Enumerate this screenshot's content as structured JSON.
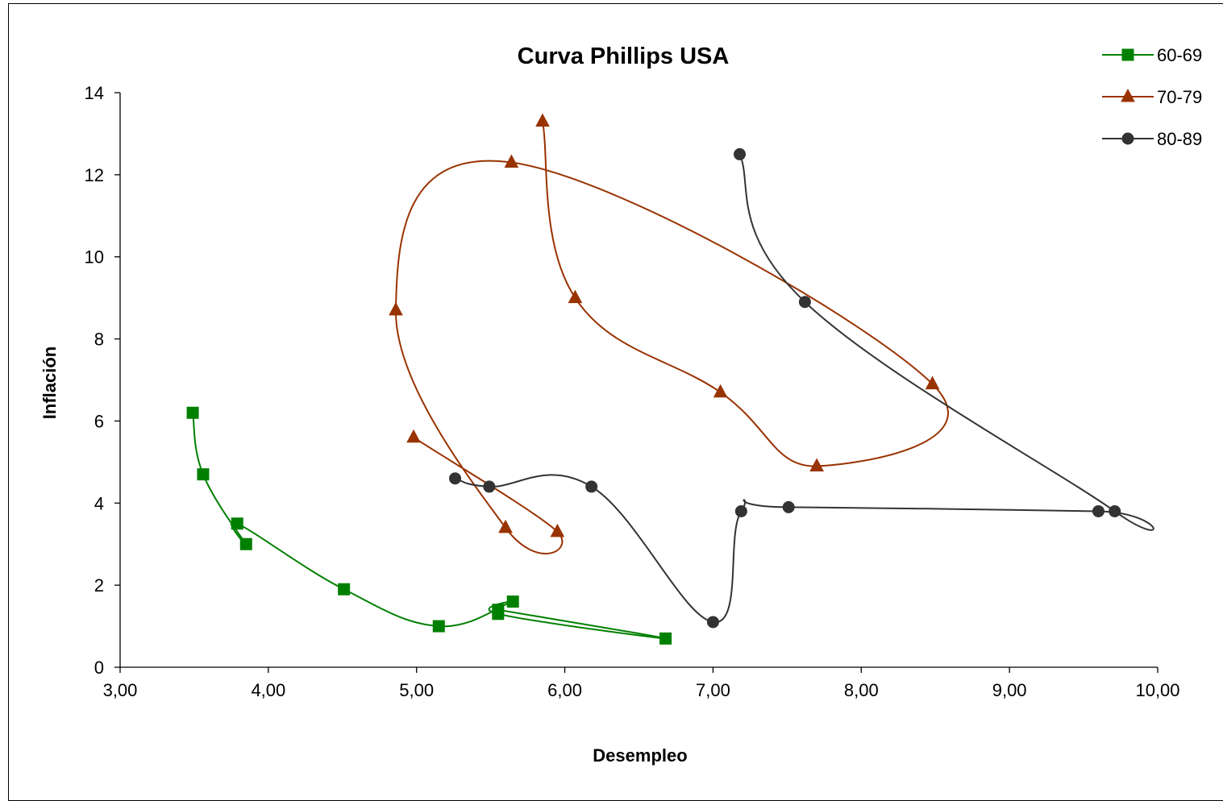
{
  "chart_data": {
    "type": "scatter",
    "title": "Curva Phillips USA",
    "xlabel": "Desempleo",
    "ylabel": "Inflación",
    "xlim": [
      3.0,
      10.0
    ],
    "ylim": [
      0,
      14
    ],
    "x_ticks": [
      "3,00",
      "4,00",
      "5,00",
      "6,00",
      "7,00",
      "8,00",
      "9,00",
      "10,00"
    ],
    "y_ticks": [
      "0",
      "2",
      "4",
      "6",
      "8",
      "10",
      "12",
      "14"
    ],
    "grid": false,
    "legend_position": "top-right",
    "series": [
      {
        "name": "60-69",
        "color": "#008000",
        "marker": "square",
        "points": [
          [
            5.55,
            1.4
          ],
          [
            6.68,
            0.7
          ],
          [
            5.55,
            1.3
          ],
          [
            5.65,
            1.6
          ],
          [
            5.15,
            1.0
          ],
          [
            4.51,
            1.9
          ],
          [
            3.79,
            3.5
          ],
          [
            3.85,
            3.0
          ],
          [
            3.56,
            4.7
          ],
          [
            3.49,
            6.2
          ]
        ]
      },
      {
        "name": "70-79",
        "color": "#993300",
        "marker": "triangle",
        "points": [
          [
            4.98,
            5.6
          ],
          [
            5.95,
            3.3
          ],
          [
            5.6,
            3.4
          ],
          [
            4.86,
            8.7
          ],
          [
            5.64,
            12.3
          ],
          [
            8.48,
            6.9
          ],
          [
            7.7,
            4.9
          ],
          [
            7.05,
            6.7
          ],
          [
            6.07,
            9.0
          ],
          [
            5.85,
            13.3
          ]
        ]
      },
      {
        "name": "80-89",
        "color": "#333333",
        "marker": "circle",
        "points": [
          [
            7.18,
            12.5
          ],
          [
            7.62,
            8.9
          ],
          [
            9.71,
            3.8
          ],
          [
            9.6,
            3.8
          ],
          [
            7.51,
            3.9
          ],
          [
            7.19,
            3.8
          ],
          [
            7.0,
            1.1
          ],
          [
            6.18,
            4.4
          ],
          [
            5.49,
            4.4
          ],
          [
            5.26,
            4.6
          ]
        ]
      }
    ]
  }
}
